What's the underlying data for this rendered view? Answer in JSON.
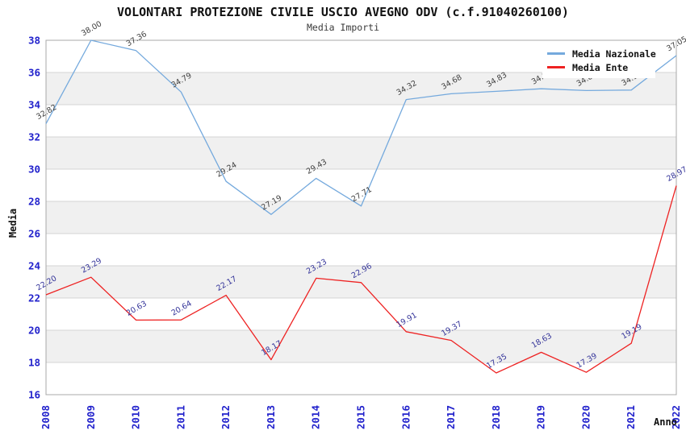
{
  "header": {
    "title": "VOLONTARI PROTEZIONE CIVILE USCIO AVEGNO ODV (c.f.91040260100)",
    "subtitle": "Media Importi"
  },
  "axes": {
    "ylabel": "Media",
    "xlabel": "Anno",
    "tick_color": "#2222cc"
  },
  "legend": {
    "items": [
      {
        "label": "Media Nazionale",
        "color": "#74a9dd"
      },
      {
        "label": "Media Ente",
        "color": "#ee2222"
      }
    ]
  },
  "chart_data": {
    "type": "line",
    "x": [
      "2008",
      "2009",
      "2010",
      "2011",
      "2012",
      "2013",
      "2014",
      "2015",
      "2016",
      "2017",
      "2018",
      "2019",
      "2020",
      "2021",
      "2022"
    ],
    "series": [
      {
        "name": "Media Nazionale",
        "color": "#74a9dd",
        "label_color": "#404040",
        "values": [
          32.82,
          38.0,
          37.36,
          34.79,
          29.24,
          27.19,
          29.43,
          27.71,
          34.32,
          34.68,
          34.83,
          34.99,
          34.88,
          34.91,
          37.05
        ]
      },
      {
        "name": "Media Ente",
        "color": "#ee2222",
        "label_color": "#333399",
        "values": [
          22.2,
          23.29,
          20.63,
          20.64,
          22.17,
          18.17,
          23.23,
          22.96,
          19.91,
          19.37,
          17.35,
          18.63,
          17.39,
          19.19,
          28.97
        ]
      }
    ],
    "ylim": [
      16,
      38
    ],
    "ytick_step": 2,
    "grid": true,
    "legend_position": "top-right",
    "title": "VOLONTARI PROTEZIONE CIVILE USCIO AVEGNO ODV (c.f.91040260100)",
    "subtitle": "Media Importi",
    "xlabel": "Anno",
    "ylabel": "Media"
  }
}
